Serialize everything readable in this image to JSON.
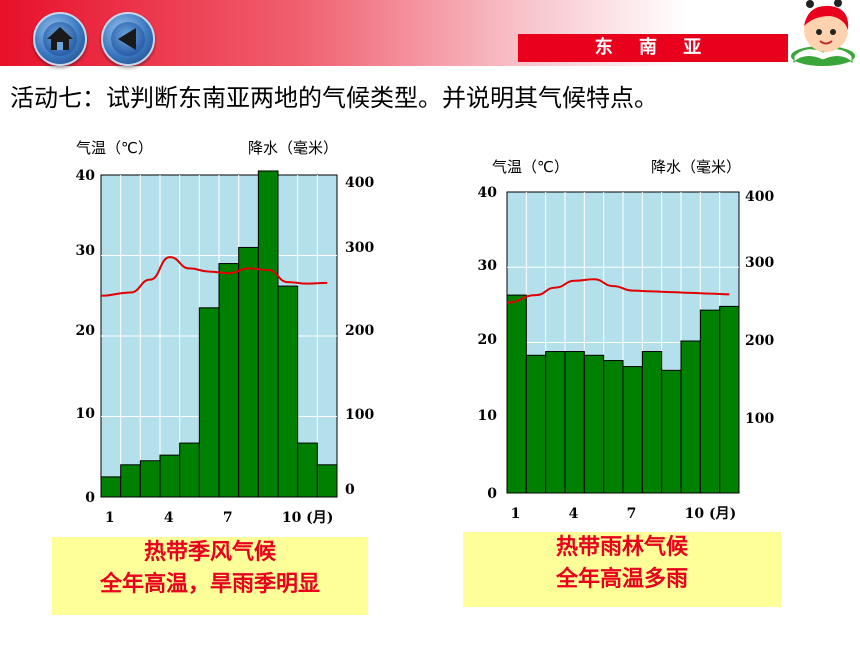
{
  "header": {
    "region": "东 南 亚"
  },
  "title": "活动七：试判断东南亚两地的气候类型。并说明其气候特点。",
  "chart_data": [
    {
      "type": "bar",
      "temp_label": "气温（℃）",
      "precip_label": "降水（毫米）",
      "x": [
        1,
        2,
        3,
        4,
        5,
        6,
        7,
        8,
        9,
        10,
        11,
        12
      ],
      "x_ticks": [
        "1",
        "4",
        "7",
        "10 (月)"
      ],
      "temp_ticks": [
        "0",
        "10",
        "20",
        "30",
        "40"
      ],
      "precip_ticks": [
        "0",
        "100",
        "200",
        "300",
        "400"
      ],
      "temp_range": [
        0,
        40
      ],
      "precip_range": [
        0,
        400
      ],
      "series": [
        {
          "kind": "bar",
          "axis": "precip",
          "values": [
            25,
            40,
            45,
            52,
            67,
            235,
            290,
            310,
            405,
            262,
            67,
            40
          ]
        },
        {
          "kind": "line",
          "axis": "temp",
          "values": [
            25.0,
            25.4,
            27.0,
            29.8,
            28.4,
            28.0,
            27.8,
            28.4,
            28.2,
            26.7,
            26.5,
            26.6
          ]
        }
      ],
      "colors": {
        "bar": "#008000",
        "line": "#e00000",
        "plot_bg": "#b4e0ec"
      },
      "caption": [
        "热带季风气候",
        "全年高温，旱雨季明显"
      ]
    },
    {
      "type": "bar",
      "temp_label": "气温（℃）",
      "precip_label": "降水（毫米）",
      "x": [
        1,
        2,
        3,
        4,
        5,
        6,
        7,
        8,
        9,
        10,
        11,
        12
      ],
      "x_ticks": [
        "1",
        "4",
        "7",
        "10 (月)"
      ],
      "temp_ticks": [
        "0",
        "10",
        "20",
        "30",
        "40"
      ],
      "precip_ticks": [
        "100",
        "200",
        "300",
        "400"
      ],
      "temp_range": [
        0,
        40
      ],
      "precip_range": [
        0,
        400
      ],
      "series": [
        {
          "kind": "bar",
          "axis": "precip",
          "values": [
            263,
            183,
            188,
            188,
            183,
            176,
            168,
            188,
            163,
            202,
            243,
            248
          ]
        },
        {
          "kind": "line",
          "axis": "temp",
          "values": [
            25.3,
            26.3,
            27.3,
            28.2,
            28.4,
            27.5,
            26.9,
            26.8,
            26.7,
            26.6,
            26.5,
            26.4
          ]
        }
      ],
      "colors": {
        "bar": "#008000",
        "line": "#e00000",
        "plot_bg": "#b4e0ec"
      },
      "caption": [
        "热带雨林气候",
        "全年高温多雨"
      ]
    }
  ]
}
